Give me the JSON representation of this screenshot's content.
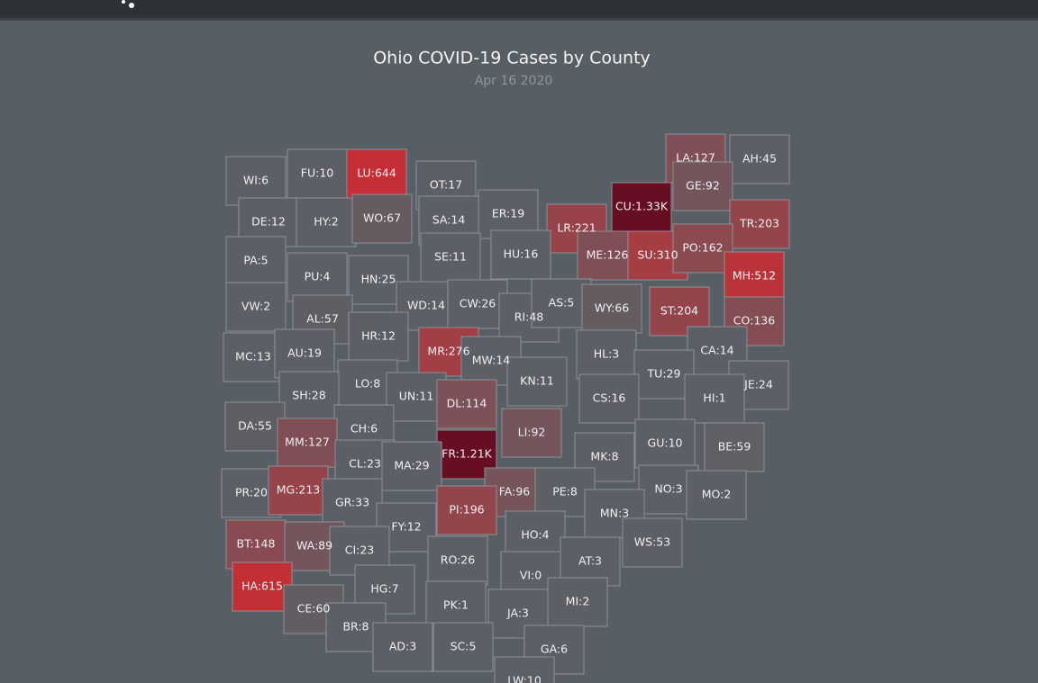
{
  "title": "Ohio COVID-19 Cases by County",
  "subtitle": "Apr 16 2020",
  "counties": [
    {
      "label": "WI:6",
      "value": 6
    },
    {
      "label": "FU:10",
      "value": 10
    },
    {
      "label": "LU:644",
      "value": 644
    },
    {
      "label": "OT:17",
      "value": 17
    },
    {
      "label": "LA:127",
      "value": 127
    },
    {
      "label": "AH:45",
      "value": 45
    },
    {
      "label": "GE:92",
      "value": 92
    },
    {
      "label": "CU:1.33K",
      "value": 1330
    },
    {
      "label": "DE:12",
      "value": 12
    },
    {
      "label": "HY:2",
      "value": 2
    },
    {
      "label": "WO:67",
      "value": 67
    },
    {
      "label": "SA:14",
      "value": 14
    },
    {
      "label": "ER:19",
      "value": 19
    },
    {
      "label": "LR:221",
      "value": 221
    },
    {
      "label": "TR:203",
      "value": 203
    },
    {
      "label": "PA:5",
      "value": 5
    },
    {
      "label": "PU:4",
      "value": 4
    },
    {
      "label": "HN:25",
      "value": 25
    },
    {
      "label": "SE:11",
      "value": 11
    },
    {
      "label": "HU:16",
      "value": 16
    },
    {
      "label": "ME:126",
      "value": 126
    },
    {
      "label": "SU:310",
      "value": 310
    },
    {
      "label": "PO:162",
      "value": 162
    },
    {
      "label": "MH:512",
      "value": 512
    },
    {
      "label": "VW:2",
      "value": 2
    },
    {
      "label": "AL:57",
      "value": 57
    },
    {
      "label": "WD:14",
      "value": 14
    },
    {
      "label": "CW:26",
      "value": 26
    },
    {
      "label": "RI:48",
      "value": 48
    },
    {
      "label": "AS:5",
      "value": 5
    },
    {
      "label": "WY:66",
      "value": 66
    },
    {
      "label": "ST:204",
      "value": 204
    },
    {
      "label": "CO:136",
      "value": 136
    },
    {
      "label": "MC:13",
      "value": 13
    },
    {
      "label": "AU:19",
      "value": 19
    },
    {
      "label": "HR:12",
      "value": 12
    },
    {
      "label": "MR:276",
      "value": 276
    },
    {
      "label": "MW:14",
      "value": 14
    },
    {
      "label": "HL:3",
      "value": 3
    },
    {
      "label": "CA:14",
      "value": 14
    },
    {
      "label": "TU:29",
      "value": 29
    },
    {
      "label": "JE:24",
      "value": 24
    },
    {
      "label": "LO:8",
      "value": 8
    },
    {
      "label": "SH:28",
      "value": 28
    },
    {
      "label": "UN:11",
      "value": 11
    },
    {
      "label": "KN:11",
      "value": 11
    },
    {
      "label": "CS:16",
      "value": 16
    },
    {
      "label": "HI:1",
      "value": 1
    },
    {
      "label": "DL:114",
      "value": 114
    },
    {
      "label": "DA:55",
      "value": 55
    },
    {
      "label": "CH:6",
      "value": 6
    },
    {
      "label": "MM:127",
      "value": 127
    },
    {
      "label": "LI:92",
      "value": 92
    },
    {
      "label": "FR:1.21K",
      "value": 1210
    },
    {
      "label": "MK:8",
      "value": 8
    },
    {
      "label": "GU:10",
      "value": 10
    },
    {
      "label": "BE:59",
      "value": 59
    },
    {
      "label": "CL:23",
      "value": 23
    },
    {
      "label": "MA:29",
      "value": 29
    },
    {
      "label": "PR:20",
      "value": 20
    },
    {
      "label": "MG:213",
      "value": 213
    },
    {
      "label": "FA:96",
      "value": 96
    },
    {
      "label": "PE:8",
      "value": 8
    },
    {
      "label": "NO:3",
      "value": 3
    },
    {
      "label": "MO:2",
      "value": 2
    },
    {
      "label": "GR:33",
      "value": 33
    },
    {
      "label": "FY:12",
      "value": 12
    },
    {
      "label": "PI:196",
      "value": 196
    },
    {
      "label": "MN:3",
      "value": 3
    },
    {
      "label": "BT:148",
      "value": 148
    },
    {
      "label": "WA:89",
      "value": 89
    },
    {
      "label": "HO:4",
      "value": 4
    },
    {
      "label": "WS:53",
      "value": 53
    },
    {
      "label": "CI:23",
      "value": 23
    },
    {
      "label": "RO:26",
      "value": 26
    },
    {
      "label": "AT:3",
      "value": 3
    },
    {
      "label": "HA:615",
      "value": 615
    },
    {
      "label": "VI:0",
      "value": 0
    },
    {
      "label": "HG:7",
      "value": 7
    },
    {
      "label": "MI:2",
      "value": 2
    },
    {
      "label": "CE:60",
      "value": 60
    },
    {
      "label": "PK:1",
      "value": 1
    },
    {
      "label": "JA:3",
      "value": 3
    },
    {
      "label": "BR:8",
      "value": 8
    },
    {
      "label": "AD:3",
      "value": 3
    },
    {
      "label": "SC:5",
      "value": 5
    },
    {
      "label": "GA:6",
      "value": 6
    },
    {
      "label": "LW:10",
      "value": 10
    }
  ]
}
